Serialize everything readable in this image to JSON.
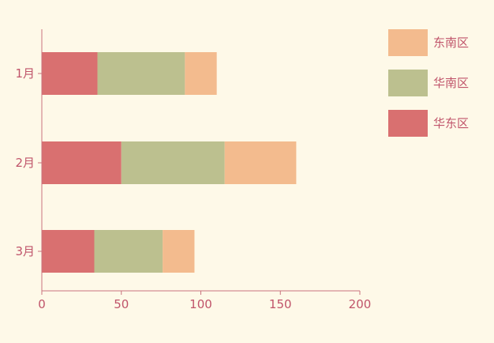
{
  "chart_data": {
    "type": "bar",
    "orientation": "horizontal",
    "stacked": true,
    "categories": [
      "1月",
      "2月",
      "3月"
    ],
    "series": [
      {
        "name": "华东区",
        "values": [
          35,
          50,
          33
        ],
        "color": "#d97070"
      },
      {
        "name": "华南区",
        "values": [
          55,
          65,
          43
        ],
        "color": "#bcc08f"
      },
      {
        "name": "东南区",
        "values": [
          20,
          45,
          20
        ],
        "color": "#f3bb8e"
      }
    ],
    "xlim": [
      0,
      200
    ],
    "xticks": [
      0,
      50,
      100,
      150,
      200
    ],
    "grid": false,
    "legend_position": "top-right",
    "legend_order": [
      "东南区",
      "华南区",
      "华东区"
    ],
    "axis_color": "#c9727e",
    "text_color": "#c0546a",
    "background": "#fef9e8"
  }
}
